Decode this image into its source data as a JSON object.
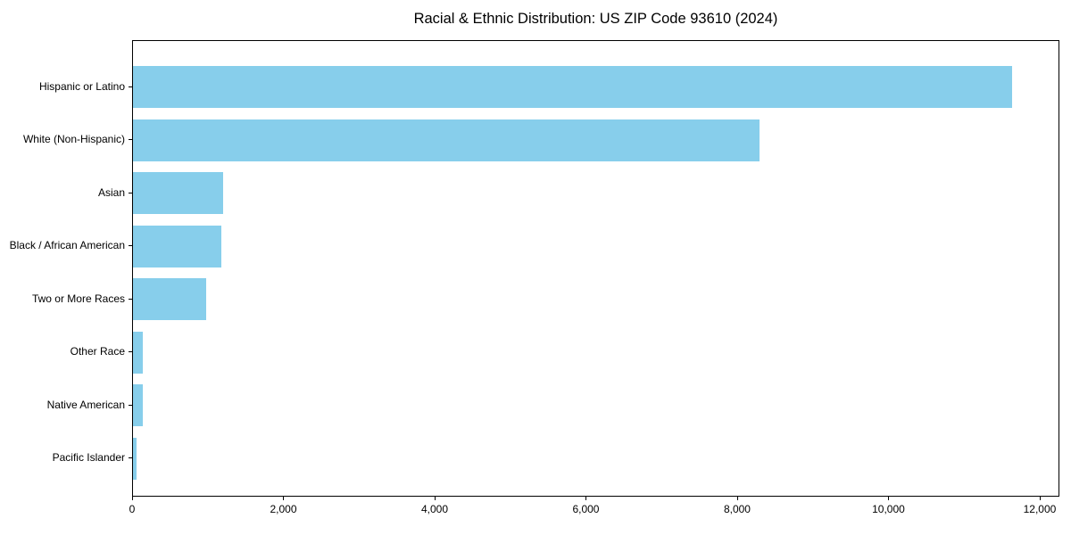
{
  "chart_data": {
    "type": "bar",
    "orientation": "horizontal",
    "title": "Racial & Ethnic Distribution: US ZIP Code 93610 (2024)",
    "categories": [
      "Hispanic or Latino",
      "White (Non-Hispanic)",
      "Asian",
      "Black / African American",
      "Two or More Races",
      "Other Race",
      "Native American",
      "Pacific Islander"
    ],
    "values": [
      11650,
      8300,
      1190,
      1170,
      970,
      135,
      130,
      50
    ],
    "xlabel": "",
    "ylabel": "",
    "xlim": [
      0,
      12260
    ],
    "x_ticks": [
      0,
      2000,
      4000,
      6000,
      8000,
      10000,
      12000
    ],
    "x_tick_labels": [
      "0",
      "2,000",
      "4,000",
      "6,000",
      "8,000",
      "10,000",
      "12,000"
    ],
    "bar_color": "#87CEEB",
    "frame_color": "#000000",
    "background_color": "#ffffff",
    "grid": false,
    "legend": null
  }
}
